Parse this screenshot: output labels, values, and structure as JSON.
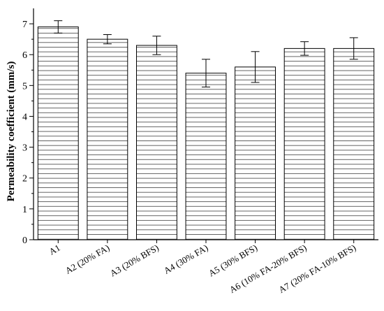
{
  "chart_data": {
    "type": "bar",
    "title": "",
    "xlabel": "",
    "ylabel": "Permeability coefficient (mm/s)",
    "ylim": [
      0,
      7.5
    ],
    "yticks": [
      0,
      1,
      2,
      3,
      4,
      5,
      6,
      7
    ],
    "grid": false,
    "bar_fill": "horizontal-hatch",
    "colors": {
      "bar_stroke": "#000000",
      "hatch": "#000000",
      "axis": "#000000",
      "background": "#ffffff"
    },
    "categories": [
      "A1",
      "A2 (20% FA)",
      "A3 (20% BFS)",
      "A4 (30% FA)",
      "A5 (30% BFS)",
      "A6 (10% FA-20% BFS)",
      "A7 (20% FA-10% BFS)"
    ],
    "values": [
      6.9,
      6.5,
      6.3,
      5.4,
      5.6,
      6.2,
      6.2
    ],
    "errors": [
      0.2,
      0.15,
      0.3,
      0.45,
      0.5,
      0.22,
      0.35
    ]
  }
}
